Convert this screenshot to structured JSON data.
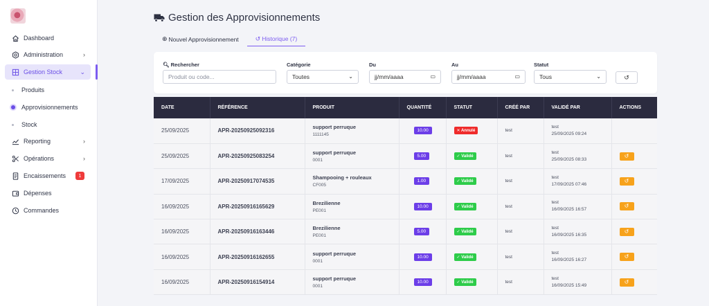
{
  "sidebar": {
    "items": [
      {
        "label": "Dashboard",
        "icon": "home-icon"
      },
      {
        "label": "Administration",
        "icon": "settings-icon"
      },
      {
        "label": "Gestion Stock",
        "icon": "grid-icon"
      },
      {
        "label": "Reporting",
        "icon": "chart-icon"
      },
      {
        "label": "Opérations",
        "icon": "scissors-icon"
      },
      {
        "label": "Encaissements",
        "icon": "receipt-icon",
        "badge": "1"
      },
      {
        "label": "Dépenses",
        "icon": "wallet-icon"
      },
      {
        "label": "Commandes",
        "icon": "clock-icon"
      }
    ],
    "sub_items": [
      "Produits",
      "Approvisionnements",
      "Stock"
    ]
  },
  "page": {
    "title": "Gestion des Approvisionnements",
    "tabs": [
      "Nouvel Approvisionnement",
      "Historique (7)"
    ]
  },
  "filters": {
    "search_label": "Rechercher",
    "search_placeholder": "Produit ou code...",
    "category_label": "Catégorie",
    "category_value": "Toutes",
    "from_label": "Du",
    "from_value": "jj/mm/aaaa",
    "to_label": "Au",
    "to_value": "jj/mm/aaaa",
    "status_label": "Statut",
    "status_value": "Tous"
  },
  "table": {
    "headers": [
      "DATE",
      "RÉFÉRENCE",
      "PRODUIT",
      "QUANTITÉ",
      "STATUT",
      "CRÉÉ PAR",
      "VALIDÉ PAR",
      "ACTIONS"
    ],
    "rows": [
      {
        "date": "25/09/2025",
        "ref": "APR-20250925092316",
        "product": "support perruque",
        "code": "1111145",
        "qty": "10.00",
        "status": "✕ Annulé",
        "status_type": "ko",
        "created_by": "test",
        "validated_by": "test",
        "validated_at": "25/09/2025 09:24",
        "action": false
      },
      {
        "date": "25/09/2025",
        "ref": "APR-20250925083254",
        "product": "support perruque",
        "code": "0001",
        "qty": "5.00",
        "status": "✓ Validé",
        "status_type": "ok",
        "created_by": "test",
        "validated_by": "test",
        "validated_at": "25/09/2025 08:33",
        "action": true
      },
      {
        "date": "17/09/2025",
        "ref": "APR-20250917074535",
        "product": "Shampooing + rouleaux",
        "code": "CF005",
        "qty": "1.00",
        "status": "✓ Validé",
        "status_type": "ok",
        "created_by": "test",
        "validated_by": "test",
        "validated_at": "17/09/2025 07:46",
        "action": true
      },
      {
        "date": "16/09/2025",
        "ref": "APR-20250916165629",
        "product": "Brezilienne",
        "code": "PE001",
        "qty": "10.00",
        "status": "✓ Validé",
        "status_type": "ok",
        "created_by": "test",
        "validated_by": "test",
        "validated_at": "16/09/2025 16:57",
        "action": true
      },
      {
        "date": "16/09/2025",
        "ref": "APR-20250916163446",
        "product": "Brezilienne",
        "code": "PE001",
        "qty": "5.00",
        "status": "✓ Validé",
        "status_type": "ok",
        "created_by": "test",
        "validated_by": "test",
        "validated_at": "16/09/2025 16:35",
        "action": true
      },
      {
        "date": "16/09/2025",
        "ref": "APR-20250916162655",
        "product": "support perruque",
        "code": "0001",
        "qty": "10.00",
        "status": "✓ Validé",
        "status_type": "ok",
        "created_by": "test",
        "validated_by": "test",
        "validated_at": "16/09/2025 16:27",
        "action": true
      },
      {
        "date": "16/09/2025",
        "ref": "APR-20250916154914",
        "product": "support perruque",
        "code": "0001",
        "qty": "10.00",
        "status": "✓ Validé",
        "status_type": "ok",
        "created_by": "test",
        "validated_by": "test",
        "validated_at": "16/09/2025 15:49",
        "action": true
      }
    ]
  },
  "colors": {
    "accent": "#7c5cf0",
    "header_bg": "#2b2b3f",
    "qty_badge": "#6c3ee8",
    "valid": "#2ecc4a",
    "cancelled": "#ef2b2b",
    "action": "#f7a21b"
  }
}
